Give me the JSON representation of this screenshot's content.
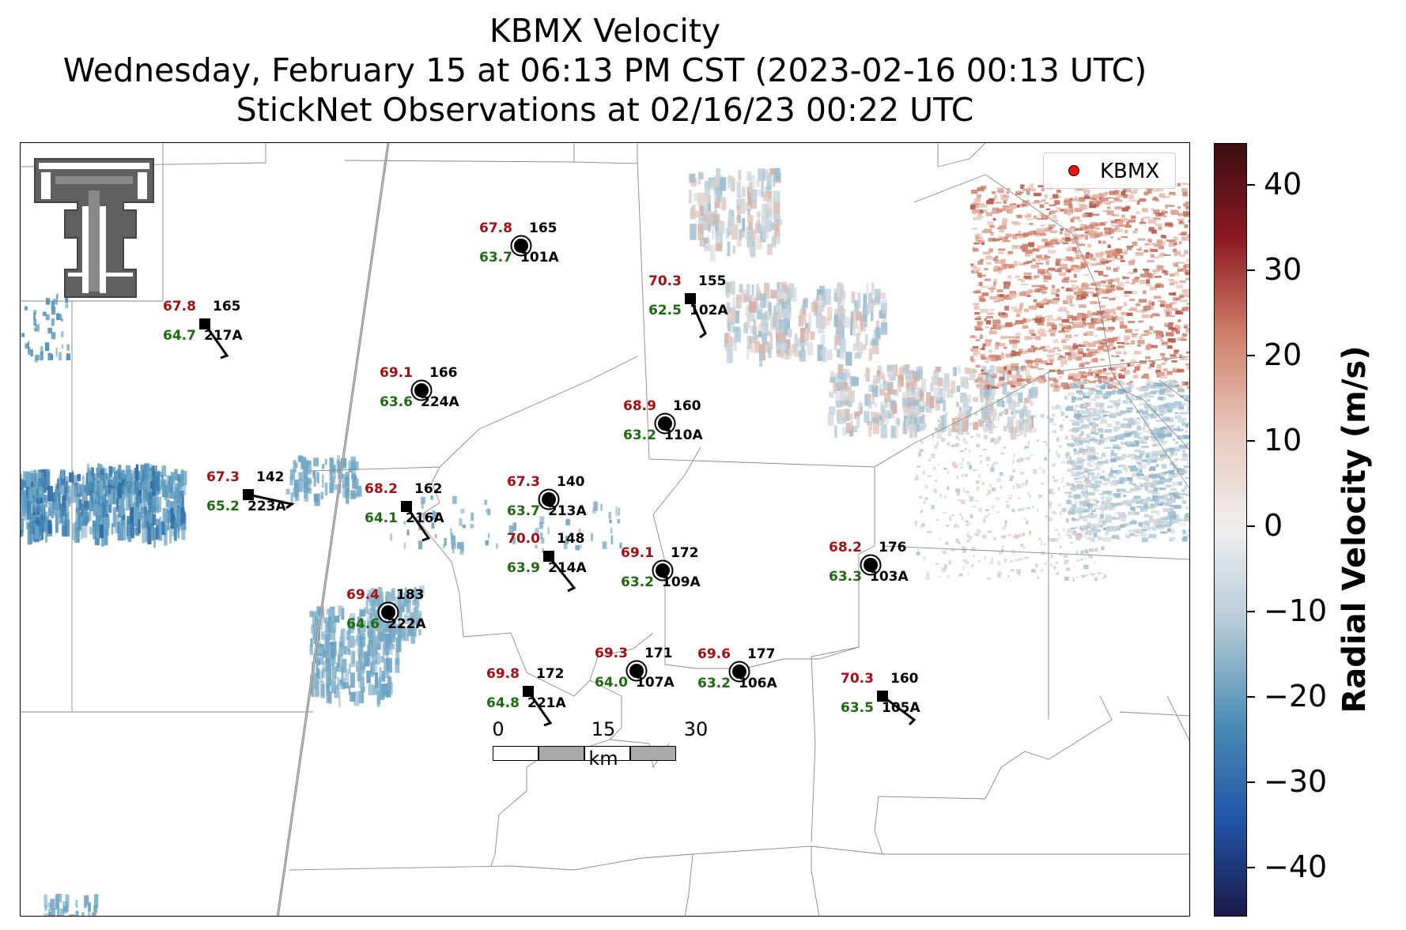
{
  "title": {
    "line1": "KBMX Velocity",
    "line2": "Wednesday, February 15 at 06:13 PM CST (2023-02-16 00:13 UTC)",
    "line3": "StickNet Observations at 02/16/23 00:22 UTC"
  },
  "legend": {
    "label": "KBMX",
    "marker_color": "#e11111"
  },
  "colorbar": {
    "title": "Radial Velocity (m/s)",
    "range": [
      -45,
      45
    ],
    "ticks": [
      "40",
      "30",
      "20",
      "10",
      "0",
      "−10",
      "−20",
      "−30",
      "−40"
    ],
    "colors": [
      "#3a0d12",
      "#8e1b22",
      "#d0816c",
      "#e8c9bd",
      "#efefef",
      "#b2c9d6",
      "#4b8db5",
      "#2255a8",
      "#1a1a4a"
    ]
  },
  "scalebar": {
    "labels": [
      "0",
      "15",
      "30"
    ],
    "unit": "km"
  },
  "logo": {
    "description": "Texas Tech Double T",
    "color": "#606060"
  },
  "stations": [
    {
      "id": "101A",
      "temp": "67.8",
      "dew": "63.7",
      "dir": "165",
      "marker": "circle"
    },
    {
      "id": "102A",
      "temp": "70.3",
      "dew": "62.5",
      "dir": "155",
      "marker": "square"
    },
    {
      "id": "217A",
      "temp": "67.8",
      "dew": "64.7",
      "dir": "165",
      "marker": "square"
    },
    {
      "id": "224A",
      "temp": "69.1",
      "dew": "63.6",
      "dir": "166",
      "marker": "circle"
    },
    {
      "id": "110A",
      "temp": "68.9",
      "dew": "63.2",
      "dir": "160",
      "marker": "circle"
    },
    {
      "id": "223A",
      "temp": "67.3",
      "dew": "65.2",
      "dir": "142",
      "marker": "square"
    },
    {
      "id": "216A",
      "temp": "68.2",
      "dew": "64.1",
      "dir": "162",
      "marker": "square"
    },
    {
      "id": "213A",
      "temp": "67.3",
      "dew": "63.7",
      "dir": "140",
      "marker": "circle"
    },
    {
      "id": "214A",
      "temp": "70.0",
      "dew": "63.9",
      "dir": "148",
      "marker": "square"
    },
    {
      "id": "109A",
      "temp": "69.1",
      "dew": "63.2",
      "dir": "172",
      "marker": "circle"
    },
    {
      "id": "103A",
      "temp": "68.2",
      "dew": "63.3",
      "dir": "176",
      "marker": "circle"
    },
    {
      "id": "222A",
      "temp": "69.4",
      "dew": "64.6",
      "dir": "183",
      "marker": "circle"
    },
    {
      "id": "107A",
      "temp": "69.3",
      "dew": "64.0",
      "dir": "171",
      "marker": "circle"
    },
    {
      "id": "106A",
      "temp": "69.6",
      "dew": "63.2",
      "dir": "177",
      "marker": "circle"
    },
    {
      "id": "221A",
      "temp": "69.8",
      "dew": "64.8",
      "dir": "172",
      "marker": "square"
    },
    {
      "id": "105A",
      "temp": "70.3",
      "dew": "63.5",
      "dir": "160",
      "marker": "square"
    }
  ]
}
